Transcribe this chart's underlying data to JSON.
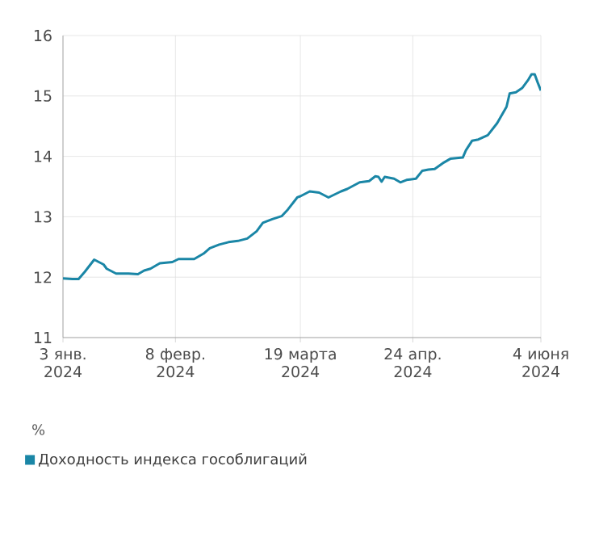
{
  "chart_data": {
    "type": "line",
    "ylabel": "%",
    "x": [
      "2024-01-03",
      "2024-01-06",
      "2024-01-08",
      "2024-01-10",
      "2024-01-13",
      "2024-01-16",
      "2024-01-17",
      "2024-01-20",
      "2024-01-22",
      "2024-01-24",
      "2024-01-27",
      "2024-01-29",
      "2024-01-31",
      "2024-02-03",
      "2024-02-07",
      "2024-02-09",
      "2024-02-12",
      "2024-02-14",
      "2024-02-17",
      "2024-02-19",
      "2024-02-22",
      "2024-02-25",
      "2024-02-28",
      "2024-03-02",
      "2024-03-05",
      "2024-03-07",
      "2024-03-10",
      "2024-03-13",
      "2024-03-15",
      "2024-03-18",
      "2024-03-19",
      "2024-03-22",
      "2024-03-25",
      "2024-03-28",
      "2024-04-01",
      "2024-04-03",
      "2024-04-07",
      "2024-04-10",
      "2024-04-12",
      "2024-04-13",
      "2024-04-14",
      "2024-04-15",
      "2024-04-18",
      "2024-04-20",
      "2024-04-22",
      "2024-04-25",
      "2024-04-27",
      "2024-04-29",
      "2024-05-01",
      "2024-05-04",
      "2024-05-06",
      "2024-05-10",
      "2024-05-11",
      "2024-05-13",
      "2024-05-15",
      "2024-05-18",
      "2024-05-21",
      "2024-05-24",
      "2024-05-25",
      "2024-05-27",
      "2024-05-29",
      "2024-05-31",
      "2024-06-01",
      "2024-06-02",
      "2024-06-03",
      "2024-06-04"
    ],
    "series": [
      {
        "name": "Доходность индекса гособлигаций",
        "color": "#1a86a6",
        "values": [
          11.98,
          11.97,
          11.97,
          12.09,
          12.29,
          12.21,
          12.14,
          12.06,
          12.06,
          12.06,
          12.05,
          12.11,
          12.14,
          12.23,
          12.25,
          12.3,
          12.3,
          12.3,
          12.39,
          12.48,
          12.54,
          12.58,
          12.6,
          12.64,
          12.76,
          12.9,
          12.96,
          13.01,
          13.12,
          13.32,
          13.34,
          13.42,
          13.4,
          13.32,
          13.42,
          13.46,
          13.57,
          13.59,
          13.67,
          13.66,
          13.58,
          13.66,
          13.63,
          13.57,
          13.61,
          13.63,
          13.76,
          13.78,
          13.79,
          13.9,
          13.96,
          13.98,
          14.1,
          14.26,
          14.28,
          14.35,
          14.55,
          14.82,
          15.04,
          15.06,
          15.13,
          15.27,
          15.36,
          15.36,
          15.22,
          15.09
        ]
      }
    ],
    "xlim": [
      "2024-01-03",
      "2024-06-04"
    ],
    "xticks": [
      {
        "value": "2024-01-03",
        "label": "3 янв. 2024"
      },
      {
        "value": "2024-02-08",
        "label": "8 февр. 2024"
      },
      {
        "value": "2024-03-19",
        "label": "19 марта 2024"
      },
      {
        "value": "2024-04-24",
        "label": "24 апр. 2024"
      },
      {
        "value": "2024-06-04",
        "label": "4 июня 2024"
      }
    ],
    "ylim": [
      11,
      16
    ],
    "yticks": [
      11,
      12,
      13,
      14,
      15,
      16
    ],
    "grid": true,
    "legend": "bottom left",
    "marker": "none",
    "line_style": "solid"
  }
}
